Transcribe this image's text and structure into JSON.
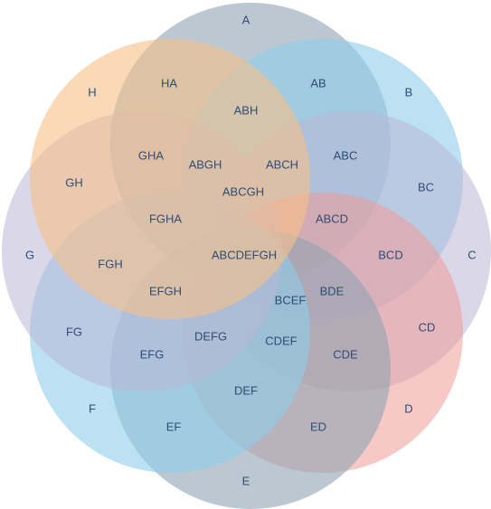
{
  "diagram": {
    "type": "venn",
    "sets": [
      {
        "id": "A",
        "color": "#8fa3b3",
        "opacity": 0.6
      },
      {
        "id": "B",
        "color": "#8dcde9",
        "opacity": 0.6
      },
      {
        "id": "C",
        "color": "#bcb8d6",
        "opacity": 0.55
      },
      {
        "id": "D",
        "color": "#ef9b98",
        "opacity": 0.55
      },
      {
        "id": "E",
        "color": "#8fa3b3",
        "opacity": 0.6
      },
      {
        "id": "F",
        "color": "#8dcde9",
        "opacity": 0.6
      },
      {
        "id": "G",
        "color": "#bcb8d6",
        "opacity": 0.55
      },
      {
        "id": "H",
        "color": "#f7c087",
        "opacity": 0.6
      }
    ],
    "labels": {
      "A": "A",
      "B": "B",
      "C": "C",
      "D": "D",
      "E": "E",
      "F": "F",
      "G": "G",
      "H": "H",
      "HA": "HA",
      "AB": "AB",
      "ABH": "ABH",
      "GHA": "GHA",
      "ABGH": "ABGH",
      "ABCH": "ABCH",
      "ABC": "ABC",
      "GH": "GH",
      "ABCGH": "ABCGH",
      "BC": "BC",
      "FGHA": "FGHA",
      "ABCD": "ABCD",
      "FGH": "FGH",
      "ABCDEFGH": "ABCDEFGH",
      "BCD": "BCD",
      "EFGH": "EFGH",
      "BDE": "BDE",
      "BCEF": "BCEF",
      "FG": "FG",
      "DEFG": "DEFG",
      "CDEF": "CDEF",
      "CD": "CD",
      "EFG": "EFG",
      "CDE": "CDE",
      "DEF": "DEF",
      "EF": "EF",
      "ED": "ED"
    }
  }
}
